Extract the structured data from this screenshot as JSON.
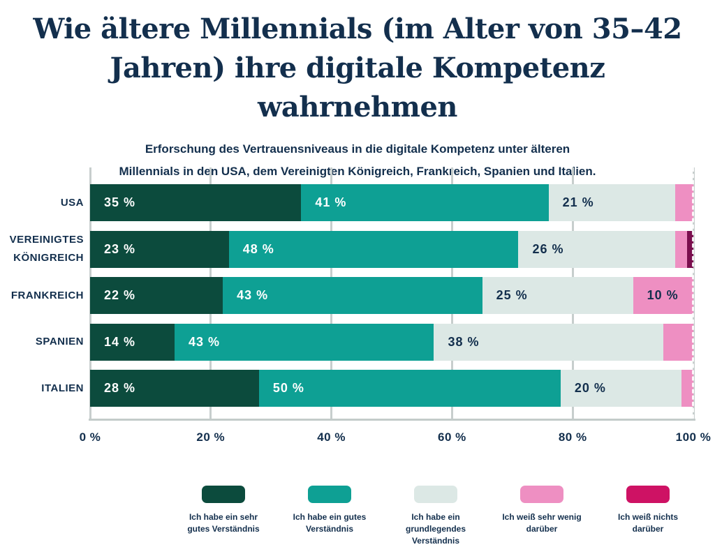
{
  "page": {
    "title": "Wie ältere Millennials (im Alter von 35–42 Jahren) ihre digitale Kompetenz wahrnehmen",
    "subtitle": "Erforschung des Vertrauensniveaus in die digitale Kompetenz unter älteren\nMillennials in den USA, dem Vereinigten Königreich, Frankreich, Spanien und Italien."
  },
  "colors": {
    "text_navy": "#132F4D",
    "dark_green": "#0C4B3D",
    "teal": "#0EA094",
    "light_gray": "#DCE8E5",
    "pink": "#EE8FC2",
    "plum_bar": "#7A0E4E",
    "crimson_legend": "#CE1264",
    "gridline": "#C7CECD",
    "background": "#FFFFFF"
  },
  "chart_data": {
    "type": "bar",
    "orientation": "horizontal",
    "stacked": true,
    "grid": true,
    "xlim": [
      0,
      100
    ],
    "value_suffix": " %",
    "label_min_value": 10,
    "categories": [
      "USA",
      "VEREINIGTES\nKÖNIGREICH",
      "FRANKREICH",
      "SPANIEN",
      "ITALIEN"
    ],
    "x_ticks": [
      "0 %",
      "20 %",
      "40 %",
      "60 %",
      "80 %",
      "100 %"
    ],
    "series": [
      {
        "name": "Ich habe ein sehr gutes Verständnis",
        "color": "#0C4B3D",
        "label_color": "#FFFFFF",
        "values": [
          35,
          23,
          22,
          14,
          28
        ]
      },
      {
        "name": "Ich habe ein gutes Verständnis",
        "color": "#0EA094",
        "label_color": "#FFFFFF",
        "values": [
          41,
          48,
          43,
          43,
          50
        ]
      },
      {
        "name": "Ich habe ein grundlegendes Verständnis",
        "color": "#DCE8E5",
        "label_color": "#132F4D",
        "values": [
          21,
          26,
          25,
          38,
          20
        ]
      },
      {
        "name": "Ich weiß sehr wenig darüber",
        "color": "#EE8FC2",
        "label_color": "#132F4D",
        "values": [
          3,
          2,
          10,
          5,
          2
        ]
      },
      {
        "name": "Ich weiß nichts darüber",
        "color": "#7A0E4E",
        "label_color": "#FFFFFF",
        "values": [
          0,
          1,
          0,
          0,
          0
        ]
      }
    ],
    "legend": [
      {
        "label": "Ich habe ein sehr\ngutes Verständnis",
        "color": "#0C4B3D"
      },
      {
        "label": "Ich habe ein gutes\nVerständnis",
        "color": "#0EA094"
      },
      {
        "label": "Ich habe ein\ngrundlegendes\nVerständnis",
        "color": "#DCE8E5"
      },
      {
        "label": "Ich weiß sehr wenig\ndarüber",
        "color": "#EE8FC2"
      },
      {
        "label": "Ich weiß nichts\ndarüber",
        "color": "#CE1264"
      }
    ]
  }
}
